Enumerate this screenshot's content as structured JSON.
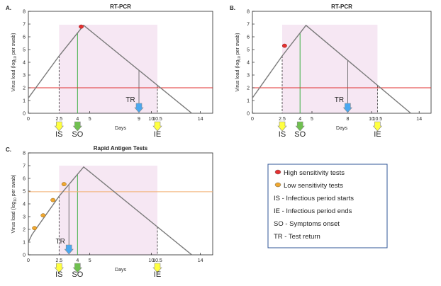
{
  "colors": {
    "curve": "#7a7a7a",
    "threshold_pcr": "#e03030",
    "threshold_rat": "#f2b173",
    "infectious_shade": "#f6e7f3",
    "high_sens_marker": "#e53030",
    "low_sens_marker": "#f0a830",
    "arrow_is_ie": "#ffff40",
    "arrow_so": "#70c050",
    "arrow_tr": "#4aa8f0",
    "so_line": "#3cb043",
    "legend_border": "#2f5597"
  },
  "chart_data": [
    {
      "type": "line",
      "panel_label": "A.",
      "title": "RT-PCR",
      "xlabel": "Days",
      "ylabel": "Virus load (log",
      "ylabel_sub": "10",
      "ylabel_tail": " per swab)",
      "xlim": [
        0,
        15
      ],
      "ylim": [
        0,
        8
      ],
      "x_ticks": [
        0,
        5,
        10,
        14
      ],
      "x_tick_labels": [
        "0",
        "5",
        "10",
        "14"
      ],
      "y_ticks": [
        0,
        1,
        2,
        3,
        4,
        5,
        6,
        7,
        8
      ],
      "y_tick_labels": [
        "0",
        "1",
        "2",
        "3",
        "4",
        "5",
        "6",
        "7",
        "8"
      ],
      "event_tick_labels": [
        {
          "x": 2.5,
          "label": "2.5"
        },
        {
          "x": 4,
          "label": "4"
        },
        {
          "x": 9,
          "label": "9"
        },
        {
          "x": 10.5,
          "label": "10.5"
        }
      ],
      "viral_load": {
        "x": [
          0,
          2.5,
          4.5,
          13.3
        ],
        "y": [
          1.2,
          4.5,
          6.9,
          0
        ]
      },
      "threshold": 2.0,
      "infectious_period": [
        2.5,
        10.5
      ],
      "shade_top": 6.95,
      "symptom_onset": 4,
      "test_marker": {
        "x": 4.3,
        "y": 6.8,
        "kind": "high"
      },
      "test_return": {
        "x": 9,
        "label": "TR"
      },
      "event_labels": [
        {
          "x": 2.5,
          "label": "IS",
          "kind": "is"
        },
        {
          "x": 4,
          "label": "SO",
          "kind": "so"
        },
        {
          "x": 10.5,
          "label": "IE",
          "kind": "ie"
        }
      ]
    },
    {
      "type": "line",
      "panel_label": "B.",
      "title": "RT-PCR",
      "xlabel": "Days",
      "ylabel": "Virus load (log",
      "ylabel_sub": "10",
      "ylabel_tail": " per swab)",
      "xlim": [
        0,
        15
      ],
      "ylim": [
        0,
        8
      ],
      "x_ticks": [
        0,
        5,
        10,
        14
      ],
      "x_tick_labels": [
        "0",
        "5",
        "10",
        "14"
      ],
      "y_ticks": [
        0,
        1,
        2,
        3,
        4,
        5,
        6,
        7,
        8
      ],
      "y_tick_labels": [
        "0",
        "1",
        "2",
        "3",
        "4",
        "5",
        "6",
        "7",
        "8"
      ],
      "event_tick_labels": [
        {
          "x": 2.5,
          "label": "2.5"
        },
        {
          "x": 4,
          "label": "4"
        },
        {
          "x": 8,
          "label": "8"
        },
        {
          "x": 10.5,
          "label": "10.5"
        }
      ],
      "viral_load": {
        "x": [
          0,
          2.5,
          4.5,
          13.3
        ],
        "y": [
          1.2,
          4.5,
          6.9,
          0
        ]
      },
      "threshold": 2.0,
      "infectious_period": [
        2.5,
        10.5
      ],
      "shade_top": 6.95,
      "symptom_onset": 4,
      "test_marker": {
        "x": 2.7,
        "y": 5.3,
        "kind": "high"
      },
      "test_return": {
        "x": 8,
        "label": "TR"
      },
      "event_labels": [
        {
          "x": 2.5,
          "label": "IS",
          "kind": "is"
        },
        {
          "x": 4,
          "label": "SO",
          "kind": "so"
        },
        {
          "x": 10.5,
          "label": "IE",
          "kind": "ie"
        }
      ]
    },
    {
      "type": "line",
      "panel_label": "C.",
      "title": "Rapid Antigen Tests",
      "xlabel": "Days",
      "ylabel": "Virus load (log",
      "ylabel_sub": "10",
      "ylabel_tail": " per swab)",
      "xlim": [
        0,
        15
      ],
      "ylim": [
        0,
        8
      ],
      "x_ticks": [
        0,
        5,
        10,
        14
      ],
      "x_tick_labels": [
        "0",
        "5",
        "10",
        "14"
      ],
      "y_ticks": [
        0,
        1,
        2,
        3,
        4,
        5,
        6,
        7,
        8
      ],
      "y_tick_labels": [
        "0",
        "1",
        "2",
        "3",
        "4",
        "5",
        "6",
        "7",
        "8"
      ],
      "event_tick_labels": [
        {
          "x": 2.5,
          "label": "2.5"
        },
        {
          "x": 4,
          "label": "4"
        },
        {
          "x": 10.5,
          "label": "10.5"
        }
      ],
      "viral_load": {
        "x": [
          0,
          0.3,
          2.5,
          4.5,
          13.3
        ],
        "y": [
          1.0,
          1.6,
          4.6,
          6.9,
          0
        ]
      },
      "threshold": 4.95,
      "infectious_period": [
        2.5,
        10.5
      ],
      "shade_top": 7.0,
      "symptom_onset": 4,
      "test_markers": [
        {
          "x": 0.5,
          "y": 2.1
        },
        {
          "x": 1.2,
          "y": 3.1
        },
        {
          "x": 2.0,
          "y": 4.3
        },
        {
          "x": 2.9,
          "y": 5.55
        }
      ],
      "test_return": {
        "x": 3.3,
        "label": "TR"
      },
      "event_labels": [
        {
          "x": 2.5,
          "label": "IS",
          "kind": "is"
        },
        {
          "x": 4,
          "label": "SO",
          "kind": "so"
        },
        {
          "x": 10.5,
          "label": "IE",
          "kind": "ie"
        }
      ]
    }
  ],
  "legend": {
    "items": [
      {
        "marker": "high",
        "label": "High sensitivity tests"
      },
      {
        "marker": "low",
        "label": "Low sensitivity tests"
      },
      {
        "marker": "none",
        "label": "IS -  Infectious period starts"
      },
      {
        "marker": "none",
        "label": "IE -  Infectious period ends"
      },
      {
        "marker": "none",
        "label": "SO - Symptoms onset"
      },
      {
        "marker": "none",
        "label": "TR - Test return"
      }
    ]
  }
}
